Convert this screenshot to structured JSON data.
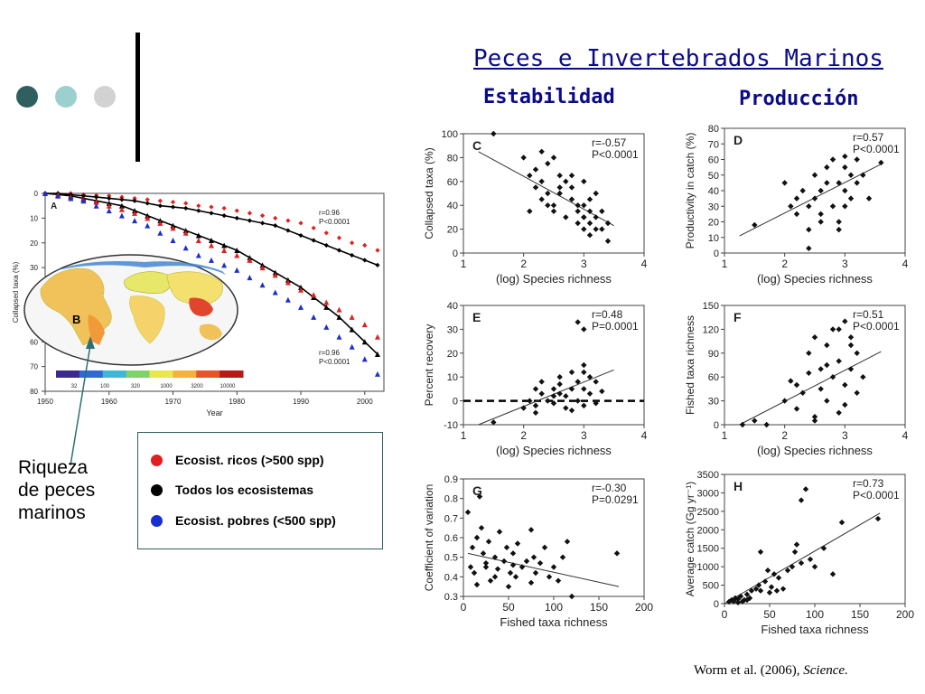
{
  "colors": {
    "accent_dark": "#2f5f5f",
    "accent_teal": "#9dcfcf",
    "accent_grey": "#d2d2d2",
    "title_blue": "#0b0b8a",
    "rich": "#e02020",
    "all": "#000000",
    "poor": "#1a2fd0",
    "arrow": "#2f6f6f"
  },
  "header": {
    "title": "Peces e Invertebrados Marinos",
    "stability": "Estabilidad",
    "production": "Producción"
  },
  "annotation": {
    "line1": "Riqueza",
    "line2": "de peces",
    "line3": "marinos"
  },
  "legend": {
    "rich": "Ecosist. ricos (>500 spp)",
    "all": "Todos los ecosistemas",
    "poor": "Ecosist. pobres (<500 spp)"
  },
  "citation": {
    "authors": "Worm et al. (2006), ",
    "journal": "Science."
  },
  "chart_data": [
    {
      "panel": "A",
      "type": "scatter",
      "xlabel": "Year",
      "ylabel": "Collapsed taxa (%)",
      "xlim": [
        1950,
        2003
      ],
      "ylim": [
        0,
        80
      ],
      "y_inverted": true,
      "xticks": [
        1950,
        1960,
        1970,
        1980,
        1990,
        2000
      ],
      "yticks": [
        0,
        10,
        20,
        30,
        40,
        50,
        60,
        70,
        80
      ],
      "stats": [
        {
          "r": "r=0.96",
          "p": "P<0.0001",
          "position": "upper"
        },
        {
          "r": "r=0.96",
          "p": "P<0.0001",
          "position": "lower"
        }
      ],
      "series": [
        {
          "key": "rich",
          "marker": "diamond",
          "fit": [
            0,
            20,
            24,
            26
          ],
          "fit_t": [
            0,
            0.6,
            0.9,
            1.0
          ],
          "x": [
            1950,
            1952,
            1954,
            1956,
            1958,
            1960,
            1962,
            1964,
            1966,
            1968,
            1970,
            1972,
            1974,
            1976,
            1978,
            1980,
            1982,
            1984,
            1986,
            1988,
            1990,
            1992,
            1994,
            1996,
            1998,
            2000,
            2002
          ],
          "values": [
            0,
            0,
            0,
            0.5,
            0.8,
            1,
            1.5,
            2,
            2.5,
            3,
            3.5,
            4,
            5,
            5.5,
            6,
            7,
            8,
            9,
            10,
            11,
            12,
            14,
            16,
            18,
            20,
            21,
            23
          ]
        },
        {
          "key": "all",
          "marker": "diamond",
          "x": [
            1950,
            1952,
            1954,
            1956,
            1958,
            1960,
            1962,
            1964,
            1966,
            1968,
            1970,
            1972,
            1974,
            1976,
            1978,
            1980,
            1982,
            1984,
            1986,
            1988,
            1990,
            1992,
            1994,
            1996,
            1998,
            2000,
            2002
          ],
          "values": [
            0,
            0,
            0.5,
            1,
            1.5,
            2,
            2.5,
            3,
            4,
            5,
            5.5,
            6,
            7,
            8,
            9,
            10,
            11,
            12,
            13,
            15,
            17,
            19,
            21,
            23,
            25,
            27,
            29
          ]
        },
        {
          "key": "all_tri",
          "marker": "triangle",
          "x": [
            1950,
            1952,
            1954,
            1956,
            1958,
            1960,
            1962,
            1964,
            1966,
            1968,
            1970,
            1972,
            1974,
            1976,
            1978,
            1980,
            1982,
            1984,
            1986,
            1988,
            1990,
            1992,
            1994,
            1996,
            1998,
            2000,
            2002
          ],
          "values": [
            0,
            0.5,
            1,
            2,
            3,
            4,
            5,
            7,
            9,
            11,
            13,
            15,
            17,
            19,
            21,
            23,
            26,
            29,
            32,
            35,
            38,
            42,
            46,
            50,
            55,
            60,
            65
          ]
        },
        {
          "key": "rich_tri",
          "marker": "triangle",
          "x": [
            1950,
            1952,
            1954,
            1956,
            1958,
            1960,
            1962,
            1964,
            1966,
            1968,
            1970,
            1972,
            1974,
            1976,
            1978,
            1980,
            1982,
            1984,
            1986,
            1988,
            1990,
            1992,
            1994,
            1996,
            1998,
            2000,
            2002
          ],
          "values": [
            0,
            0.5,
            1.5,
            2.5,
            3.5,
            5,
            6.5,
            8,
            10,
            12,
            14,
            16,
            19,
            21,
            23,
            25,
            27,
            30,
            33,
            36,
            39,
            41,
            44,
            47,
            50,
            53,
            58
          ]
        },
        {
          "key": "poor_tri",
          "marker": "triangle",
          "x": [
            1950,
            1952,
            1954,
            1956,
            1958,
            1960,
            1962,
            1964,
            1966,
            1968,
            1970,
            1972,
            1974,
            1976,
            1978,
            1980,
            1982,
            1984,
            1986,
            1988,
            1990,
            1992,
            1994,
            1996,
            1998,
            2000,
            2002
          ],
          "values": [
            0,
            1,
            2,
            3,
            5,
            7,
            9,
            11,
            13,
            16,
            19,
            22,
            25,
            27,
            29,
            31,
            34,
            37,
            40,
            43,
            46,
            50,
            54,
            58,
            62,
            67,
            73
          ]
        }
      ],
      "inset": {
        "label": "B",
        "colorbar_ticks": [
          "32",
          "100",
          "320",
          "1000",
          "3200",
          "10000"
        ]
      }
    },
    {
      "panel": "C",
      "type": "scatter",
      "xlabel": "(log) Species richness",
      "ylabel": "Collapsed taxa (%)",
      "xlim": [
        1,
        4
      ],
      "ylim": [
        0,
        100
      ],
      "xticks": [
        1,
        2,
        3,
        4
      ],
      "yticks": [
        0,
        20,
        40,
        60,
        80,
        100
      ],
      "stats": {
        "r": "r=-0.57",
        "p": "P<0.0001"
      },
      "fit": [
        [
          1.25,
          85
        ],
        [
          3.5,
          23
        ]
      ],
      "x": [
        1.5,
        2.1,
        2.2,
        2.2,
        2.3,
        2.3,
        2.3,
        2.4,
        2.4,
        2.5,
        2.5,
        2.6,
        2.6,
        2.7,
        2.7,
        2.8,
        2.8,
        2.9,
        2.9,
        3.0,
        3.0,
        3.0,
        3.0,
        3.1,
        3.1,
        3.1,
        3.2,
        3.2,
        3.3,
        3.3,
        3.4,
        3.4,
        2.0,
        2.1,
        2.4,
        2.5,
        2.6,
        2.8,
        2.9,
        3.0,
        3.1,
        3.2
      ],
      "values": [
        100,
        35,
        70,
        55,
        60,
        85,
        45,
        50,
        75,
        80,
        40,
        55,
        65,
        60,
        30,
        45,
        65,
        35,
        25,
        40,
        30,
        60,
        20,
        35,
        15,
        45,
        30,
        50,
        20,
        35,
        25,
        10,
        80,
        65,
        40,
        35,
        50,
        55,
        40,
        30,
        25,
        20
      ]
    },
    {
      "panel": "D",
      "type": "scatter",
      "xlabel": "(log) Species richness",
      "ylabel": "Productivity in catch (%)",
      "xlim": [
        1,
        4
      ],
      "ylim": [
        0,
        80
      ],
      "xticks": [
        1,
        2,
        3,
        4
      ],
      "yticks": [
        0,
        10,
        20,
        30,
        40,
        50,
        60,
        70,
        80
      ],
      "stats": {
        "r": "r=0.57",
        "p": "P<0.0001"
      },
      "fit": [
        [
          1.25,
          11
        ],
        [
          3.6,
          57
        ]
      ],
      "x": [
        1.5,
        2.0,
        2.1,
        2.2,
        2.2,
        2.3,
        2.4,
        2.4,
        2.5,
        2.5,
        2.6,
        2.6,
        2.7,
        2.7,
        2.8,
        2.8,
        2.9,
        2.9,
        3.0,
        3.0,
        3.0,
        3.1,
        3.1,
        3.2,
        3.2,
        3.3,
        3.4,
        3.6,
        2.4,
        2.6,
        2.9,
        3.0
      ],
      "values": [
        18,
        45,
        30,
        35,
        25,
        40,
        30,
        15,
        50,
        35,
        40,
        25,
        55,
        45,
        60,
        30,
        45,
        20,
        55,
        40,
        30,
        50,
        35,
        60,
        45,
        50,
        35,
        58,
        3,
        20,
        15,
        62
      ]
    },
    {
      "panel": "E",
      "type": "scatter",
      "xlabel": "(log) Species richness",
      "ylabel": "Percent recovery",
      "xlim": [
        1,
        4
      ],
      "ylim": [
        -10,
        40
      ],
      "xticks": [
        1,
        2,
        3,
        4
      ],
      "yticks": [
        -10,
        0,
        10,
        20,
        30,
        40
      ],
      "stats": {
        "r": "r=0.48",
        "p": "P=0.0001"
      },
      "fit": [
        [
          1.25,
          -10
        ],
        [
          3.5,
          13
        ]
      ],
      "baseline": 0,
      "x": [
        1.5,
        2.0,
        2.1,
        2.2,
        2.2,
        2.3,
        2.3,
        2.4,
        2.5,
        2.5,
        2.6,
        2.6,
        2.7,
        2.7,
        2.8,
        2.8,
        2.9,
        2.9,
        3.0,
        3.0,
        3.0,
        3.1,
        3.1,
        3.2,
        3.2,
        3.3,
        2.9,
        3.0,
        2.2,
        2.5,
        2.8,
        3.0,
        2.6
      ],
      "values": [
        -9,
        -3,
        0,
        5,
        -2,
        3,
        8,
        0,
        5,
        -1,
        3,
        10,
        2,
        -3,
        5,
        12,
        0,
        8,
        15,
        5,
        -2,
        10,
        3,
        8,
        -1,
        4,
        33,
        30,
        -5,
        2,
        -4,
        12,
        7
      ]
    },
    {
      "panel": "F",
      "type": "scatter",
      "xlabel": "(log) Species richness",
      "ylabel": "Fished taxa richness",
      "xlim": [
        1,
        4
      ],
      "ylim": [
        0,
        150
      ],
      "xticks": [
        1,
        2,
        3,
        4
      ],
      "yticks": [
        0,
        30,
        60,
        90,
        120,
        150
      ],
      "stats": {
        "r": "r=0.51",
        "p": "P<0.0001"
      },
      "fit": [
        [
          1.25,
          0
        ],
        [
          3.6,
          92
        ]
      ],
      "x": [
        1.5,
        1.7,
        2.0,
        2.1,
        2.2,
        2.2,
        2.3,
        2.4,
        2.4,
        2.5,
        2.5,
        2.6,
        2.6,
        2.7,
        2.7,
        2.8,
        2.8,
        2.9,
        2.9,
        3.0,
        3.0,
        3.0,
        3.1,
        3.1,
        3.2,
        3.2,
        3.3,
        2.5,
        2.7,
        2.9,
        3.1,
        1.3
      ],
      "values": [
        5,
        0,
        30,
        55,
        20,
        50,
        40,
        90,
        65,
        10,
        110,
        70,
        45,
        100,
        30,
        120,
        60,
        80,
        15,
        130,
        50,
        25,
        110,
        70,
        90,
        40,
        60,
        5,
        75,
        120,
        100,
        0
      ]
    },
    {
      "panel": "G",
      "type": "scatter",
      "xlabel": "Fished taxa richness",
      "ylabel": "Coefficient of variation",
      "xlim": [
        0,
        200
      ],
      "ylim": [
        0.3,
        0.9
      ],
      "xticks": [
        0,
        50,
        100,
        150,
        200
      ],
      "yticks": [
        0.3,
        0.4,
        0.5,
        0.6,
        0.7,
        0.8,
        0.9
      ],
      "stats": {
        "r": "r=-0.30",
        "p": "P=0.0291"
      },
      "fit": [
        [
          5,
          0.52
        ],
        [
          172,
          0.35
        ]
      ],
      "x": [
        5,
        8,
        10,
        12,
        15,
        18,
        20,
        22,
        25,
        28,
        30,
        35,
        38,
        40,
        45,
        48,
        50,
        52,
        55,
        58,
        60,
        65,
        70,
        75,
        78,
        80,
        85,
        90,
        95,
        100,
        105,
        110,
        115,
        120,
        170,
        15,
        25,
        35,
        55,
        75
      ],
      "values": [
        0.73,
        0.45,
        0.55,
        0.42,
        0.6,
        0.81,
        0.65,
        0.52,
        0.47,
        0.58,
        0.38,
        0.5,
        0.44,
        0.63,
        0.48,
        0.55,
        0.35,
        0.42,
        0.52,
        0.4,
        0.57,
        0.45,
        0.48,
        0.64,
        0.5,
        0.42,
        0.47,
        0.55,
        0.4,
        0.45,
        0.38,
        0.5,
        0.58,
        0.3,
        0.52,
        0.36,
        0.45,
        0.4,
        0.46,
        0.37
      ]
    },
    {
      "panel": "H",
      "type": "scatter",
      "xlabel": "Fished taxa richness",
      "ylabel": "Average catch (Gg yr⁻¹)",
      "xlim": [
        0,
        200
      ],
      "ylim": [
        0,
        3500
      ],
      "xticks": [
        0,
        50,
        100,
        150,
        200
      ],
      "yticks": [
        0,
        500,
        1000,
        1500,
        2000,
        2500,
        3000,
        3500
      ],
      "stats": {
        "r": "r=0.73",
        "p": "P<0.0001"
      },
      "fit": [
        [
          0,
          0
        ],
        [
          172,
          2450
        ]
      ],
      "x": [
        5,
        8,
        10,
        12,
        15,
        18,
        20,
        22,
        25,
        28,
        30,
        35,
        38,
        40,
        45,
        48,
        50,
        52,
        55,
        58,
        60,
        65,
        70,
        75,
        78,
        80,
        85,
        90,
        95,
        100,
        110,
        120,
        130,
        170,
        25,
        40,
        85,
        10,
        15
      ],
      "values": [
        50,
        100,
        80,
        150,
        120,
        200,
        60,
        100,
        250,
        150,
        350,
        400,
        500,
        1400,
        600,
        900,
        300,
        450,
        800,
        350,
        700,
        400,
        900,
        1000,
        1400,
        1600,
        2800,
        3100,
        1200,
        1000,
        1500,
        800,
        2200,
        2300,
        100,
        350,
        1100,
        60,
        30
      ]
    }
  ]
}
